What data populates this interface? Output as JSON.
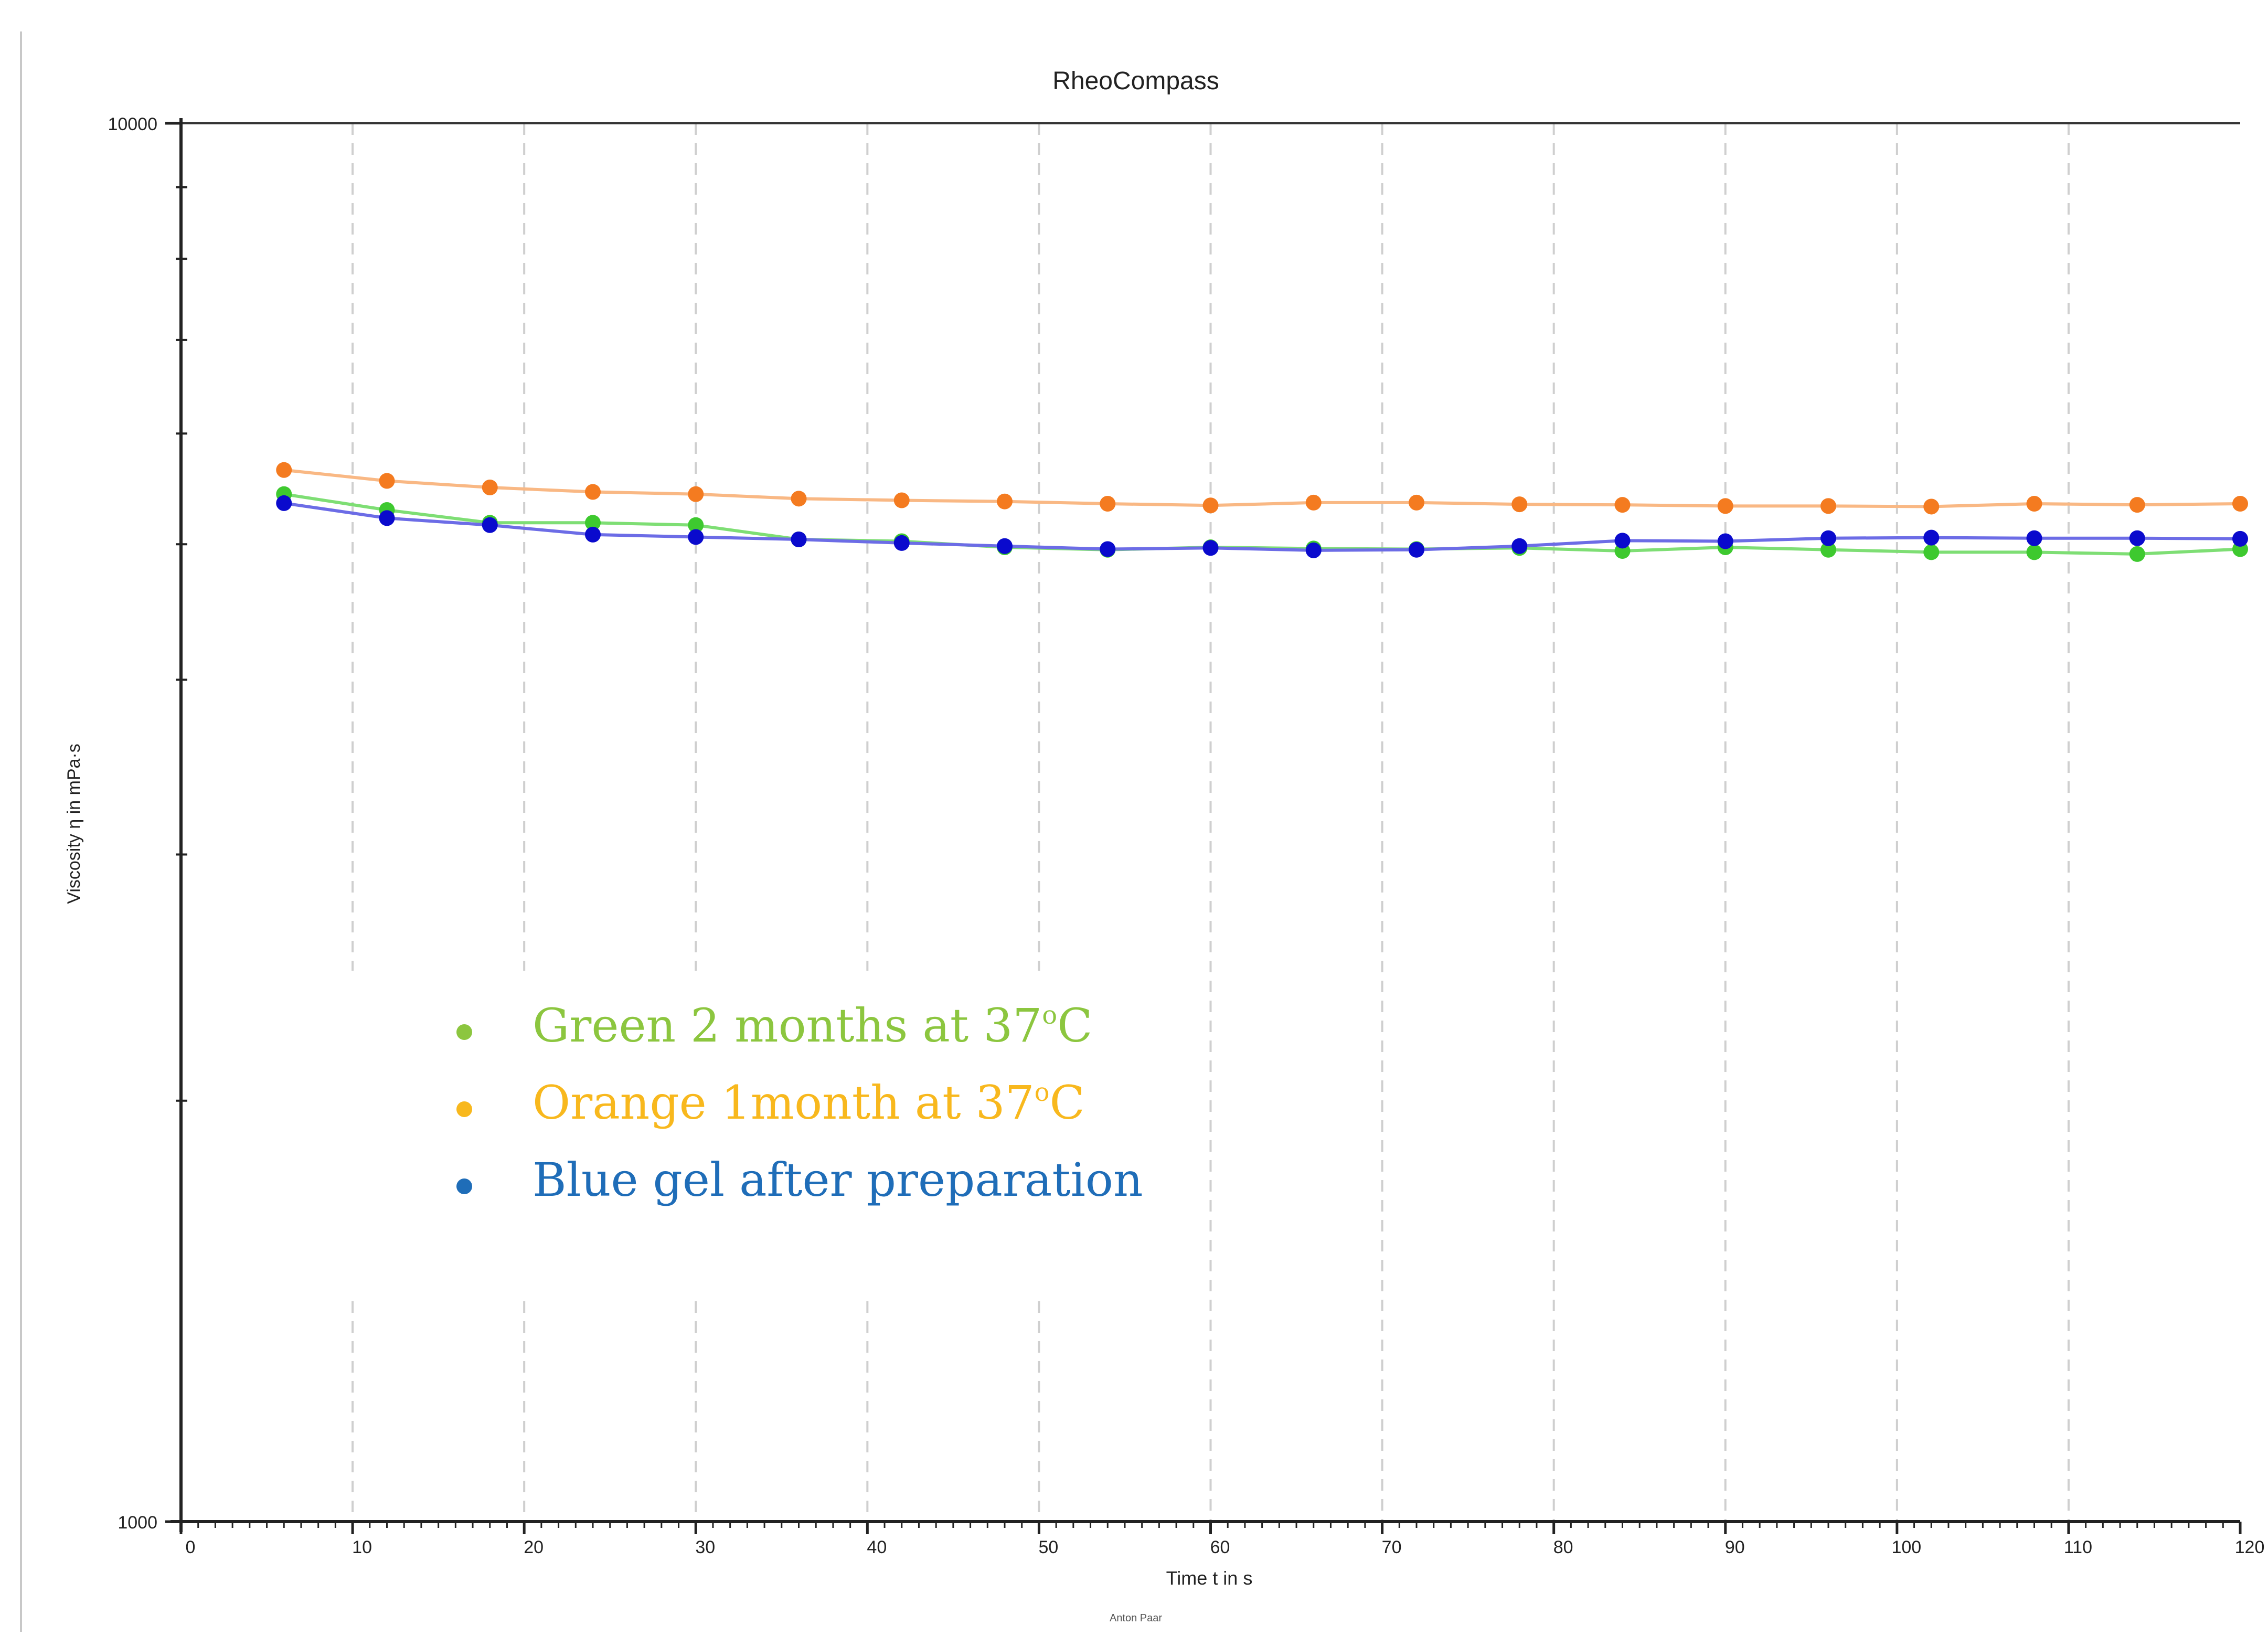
{
  "chart_data": {
    "type": "line",
    "title": "RheoCompass",
    "xlabel": "Time  t  in s",
    "ylabel": "Viscosity  η  in mPa·s",
    "footer": "Anton Paar",
    "xlim": [
      0,
      120
    ],
    "ylim": [
      1000,
      10000
    ],
    "yscale": "log",
    "x_ticks": [
      0,
      10,
      20,
      30,
      40,
      50,
      60,
      70,
      80,
      90,
      100,
      110,
      120
    ],
    "x_tick_labels": [
      "0",
      "10",
      "20",
      "30",
      "40",
      "50",
      "60",
      "70",
      "80",
      "90",
      "100",
      "110",
      "120"
    ],
    "y_tick_labels": [
      "1000",
      "10000"
    ],
    "legend_position": "lower-left inside plot",
    "x": [
      6,
      12,
      18,
      24,
      30,
      36,
      42,
      48,
      54,
      60,
      66,
      72,
      78,
      84,
      90,
      96,
      102,
      108,
      114,
      120
    ],
    "series": [
      {
        "name": "Orange 1month at 37°C",
        "label_parts": [
          "Orange 1month at 37",
          "o",
          "C"
        ],
        "color": "#f47b20",
        "line_color": "#f9b884",
        "legend_color": "#f8b81d",
        "values": [
          5650,
          5550,
          5490,
          5450,
          5430,
          5390,
          5375,
          5365,
          5345,
          5330,
          5355,
          5355,
          5340,
          5335,
          5325,
          5325,
          5320,
          5345,
          5335,
          5345
        ]
      },
      {
        "name": "Green 2 months at 37°C",
        "label_parts": [
          "Green 2 months at 37",
          "o",
          "C"
        ],
        "color": "#3ec92f",
        "line_color": "#7ede74",
        "legend_color": "#8cc63f",
        "values": [
          5430,
          5290,
          5180,
          5180,
          5160,
          5040,
          5025,
          4975,
          4955,
          4975,
          4965,
          4960,
          4970,
          4945,
          4975,
          4955,
          4935,
          4935,
          4920,
          4960
        ]
      },
      {
        "name": "Blue gel after preparation",
        "label_parts": [
          "Blue gel after preparation"
        ],
        "color": "#0a0acd",
        "line_color": "#6c6ce6",
        "legend_color": "#1f6db8",
        "values": [
          5350,
          5220,
          5160,
          5080,
          5060,
          5040,
          5010,
          4985,
          4960,
          4970,
          4950,
          4955,
          4985,
          5030,
          5025,
          5050,
          5055,
          5050,
          5050,
          5045
        ]
      }
    ]
  }
}
